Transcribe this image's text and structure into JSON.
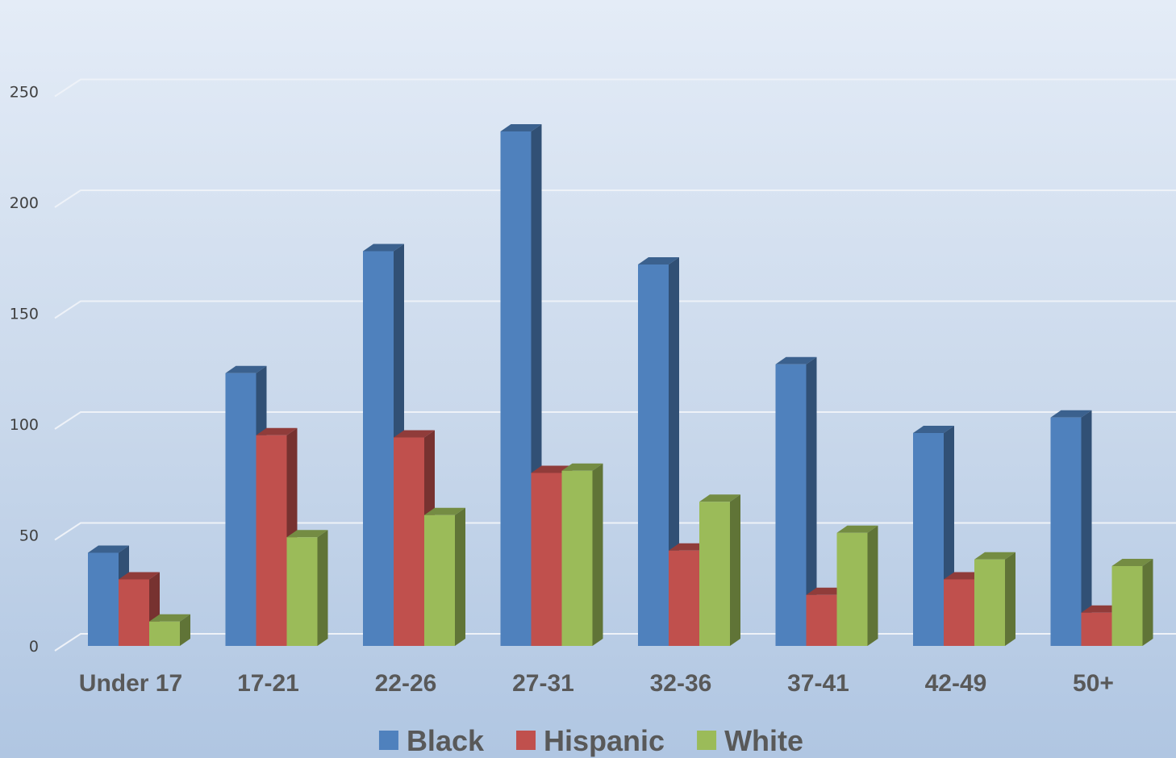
{
  "chart_data": {
    "type": "bar",
    "title": "",
    "xlabel": "",
    "ylabel": "",
    "categories": [
      "Under 17",
      "17-21",
      "22-26",
      "27-31",
      "32-36",
      "37-41",
      "42-49",
      "50+"
    ],
    "series": [
      {
        "name": "Black",
        "color": "#4f81bd",
        "values": [
          42,
          123,
          178,
          232,
          172,
          127,
          96,
          103
        ]
      },
      {
        "name": "Hispanic",
        "color": "#c0504d",
        "values": [
          30,
          95,
          94,
          78,
          43,
          23,
          30,
          15
        ]
      },
      {
        "name": "White",
        "color": "#9bbb59",
        "values": [
          11,
          49,
          59,
          79,
          65,
          51,
          39,
          36
        ]
      }
    ],
    "ylim": [
      0,
      250
    ],
    "yticks": [
      "0",
      "50",
      "100",
      "150",
      "200",
      "250"
    ],
    "grid": true,
    "legend_position": "bottom",
    "style": "3d-clustered-column"
  }
}
